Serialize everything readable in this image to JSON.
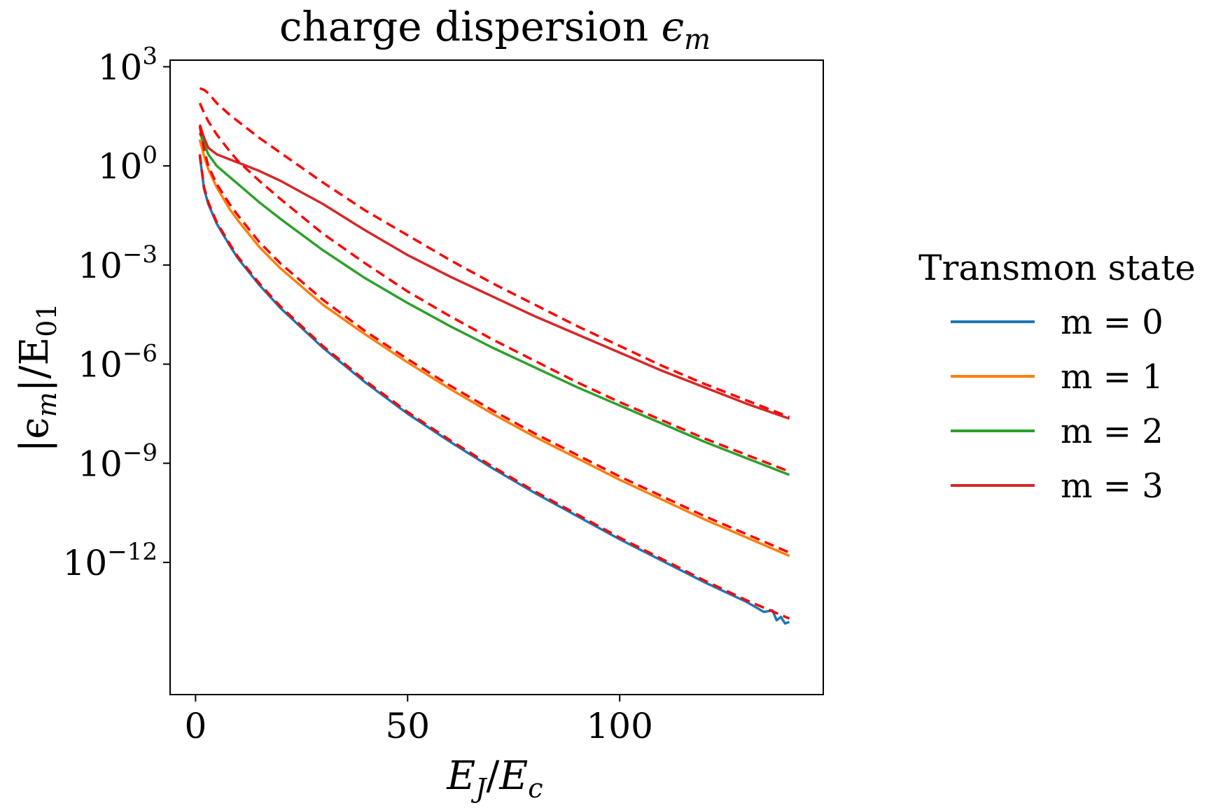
{
  "chart_data": {
    "type": "line",
    "title": "charge dispersion ϵm",
    "title_parts": {
      "text": "charge dispersion ",
      "symbol": "ϵ",
      "subscript": "m"
    },
    "xlabel": "EJ/Ec",
    "xlabel_parts": {
      "a": "E",
      "a_sub": "J",
      "slash": "/",
      "b": "E",
      "b_sub": "c"
    },
    "ylabel": "|ϵm|/E01",
    "ylabel_parts": {
      "pre": "|ϵ",
      "pre_sub": "m",
      "mid": "|/E",
      "mid_sub": "01"
    },
    "yscale": "log",
    "xlim": [
      -6,
      148
    ],
    "ylim_exponent": [
      -16,
      3.2
    ],
    "x_ticks": [
      0,
      50,
      100
    ],
    "x_tick_labels": [
      "0",
      "50",
      "100"
    ],
    "y_ticks_exponent": [
      3,
      0,
      -3,
      -6,
      -9,
      -12
    ],
    "y_tick_base": "10",
    "y_tick_exponent_labels": [
      "3",
      "0",
      "−3",
      "−6",
      "−9",
      "−12"
    ],
    "legend": {
      "title": "Transmon state",
      "position": "outside-right"
    },
    "series": [
      {
        "name": "m = 0",
        "color": "#1f77b4",
        "style": "solid",
        "x": [
          1,
          2,
          3,
          5,
          8,
          10,
          15,
          20,
          30,
          40,
          50,
          60,
          70,
          80,
          90,
          100,
          110,
          120,
          130,
          134,
          136,
          137,
          138,
          139,
          140
        ],
        "log10_y": [
          0.3,
          -0.7,
          -1.15,
          -1.75,
          -2.4,
          -2.8,
          -3.6,
          -4.3,
          -5.5,
          -6.55,
          -7.5,
          -8.35,
          -9.15,
          -9.9,
          -10.6,
          -11.3,
          -11.95,
          -12.6,
          -13.2,
          -13.5,
          -13.45,
          -13.75,
          -13.65,
          -13.85,
          -13.8
        ]
      },
      {
        "name": "m = 1",
        "color": "#ff7f0e",
        "style": "solid",
        "x": [
          1,
          2,
          3,
          5,
          8,
          10,
          15,
          20,
          30,
          40,
          50,
          60,
          70,
          80,
          90,
          100,
          110,
          120,
          130,
          140
        ],
        "log10_y": [
          0.8,
          0.3,
          -0.1,
          -0.65,
          -1.3,
          -1.65,
          -2.45,
          -3.1,
          -4.2,
          -5.1,
          -5.95,
          -6.75,
          -7.5,
          -8.2,
          -8.85,
          -9.5,
          -10.1,
          -10.7,
          -11.25,
          -11.8
        ]
      },
      {
        "name": "m = 2",
        "color": "#2ca02c",
        "style": "solid",
        "x": [
          1,
          3,
          5,
          10,
          15,
          20,
          30,
          40,
          50,
          60,
          70,
          80,
          90,
          100,
          110,
          120,
          130,
          140
        ],
        "log10_y": [
          1.0,
          0.35,
          0.0,
          -0.55,
          -1.1,
          -1.6,
          -2.55,
          -3.4,
          -4.15,
          -4.85,
          -5.5,
          -6.1,
          -6.7,
          -7.25,
          -7.8,
          -8.35,
          -8.85,
          -9.35
        ]
      },
      {
        "name": "m = 3",
        "color": "#d62728",
        "style": "solid",
        "x": [
          1,
          2,
          3,
          5,
          8,
          10,
          15,
          20,
          25,
          30,
          40,
          50,
          60,
          70,
          80,
          90,
          100,
          110,
          120,
          130,
          140
        ],
        "log10_y": [
          1.25,
          0.85,
          0.55,
          0.35,
          0.2,
          0.1,
          -0.15,
          -0.45,
          -0.8,
          -1.15,
          -1.95,
          -2.7,
          -3.35,
          -3.95,
          -4.55,
          -5.1,
          -5.65,
          -6.2,
          -6.7,
          -7.2,
          -7.65
        ]
      },
      {
        "name": "",
        "color": "#ff0000",
        "style": "dashed",
        "x": [
          1,
          2,
          3,
          5,
          8,
          10,
          15,
          20,
          30,
          40,
          50,
          60,
          70,
          80,
          90,
          100,
          110,
          120,
          130,
          140
        ],
        "log10_y": [
          0.35,
          -0.65,
          -1.1,
          -1.7,
          -2.35,
          -2.75,
          -3.55,
          -4.25,
          -5.45,
          -6.5,
          -7.45,
          -8.3,
          -9.1,
          -9.85,
          -10.55,
          -11.25,
          -11.9,
          -12.55,
          -13.15,
          -13.7
        ]
      },
      {
        "name": "",
        "color": "#ff0000",
        "style": "dashed",
        "x": [
          1,
          2,
          3,
          5,
          8,
          10,
          15,
          20,
          30,
          40,
          50,
          60,
          70,
          80,
          90,
          100,
          110,
          120,
          130,
          140
        ],
        "log10_y": [
          1.2,
          0.5,
          0.0,
          -0.55,
          -1.15,
          -1.5,
          -2.3,
          -2.95,
          -4.05,
          -5.0,
          -5.85,
          -6.65,
          -7.4,
          -8.1,
          -8.75,
          -9.4,
          -10.0,
          -10.6,
          -11.15,
          -11.7
        ]
      },
      {
        "name": "",
        "color": "#ff0000",
        "style": "dashed",
        "x": [
          1,
          2,
          3,
          5,
          8,
          10,
          15,
          20,
          30,
          40,
          50,
          60,
          70,
          80,
          90,
          100,
          110,
          120,
          130,
          140
        ],
        "log10_y": [
          1.9,
          1.6,
          1.35,
          0.95,
          0.45,
          0.15,
          -0.45,
          -1.0,
          -2.05,
          -2.95,
          -3.8,
          -4.55,
          -5.25,
          -5.9,
          -6.55,
          -7.15,
          -7.7,
          -8.25,
          -8.75,
          -9.25
        ]
      },
      {
        "name": "",
        "color": "#ff0000",
        "style": "dashed",
        "x": [
          1,
          2,
          3,
          5,
          8,
          10,
          15,
          20,
          30,
          40,
          50,
          60,
          70,
          80,
          90,
          100,
          110,
          120,
          130,
          140
        ],
        "log10_y": [
          2.35,
          2.3,
          2.2,
          1.9,
          1.55,
          1.35,
          0.85,
          0.4,
          -0.5,
          -1.35,
          -2.1,
          -2.85,
          -3.55,
          -4.2,
          -4.85,
          -5.45,
          -6.05,
          -6.6,
          -7.1,
          -7.6
        ]
      }
    ]
  }
}
